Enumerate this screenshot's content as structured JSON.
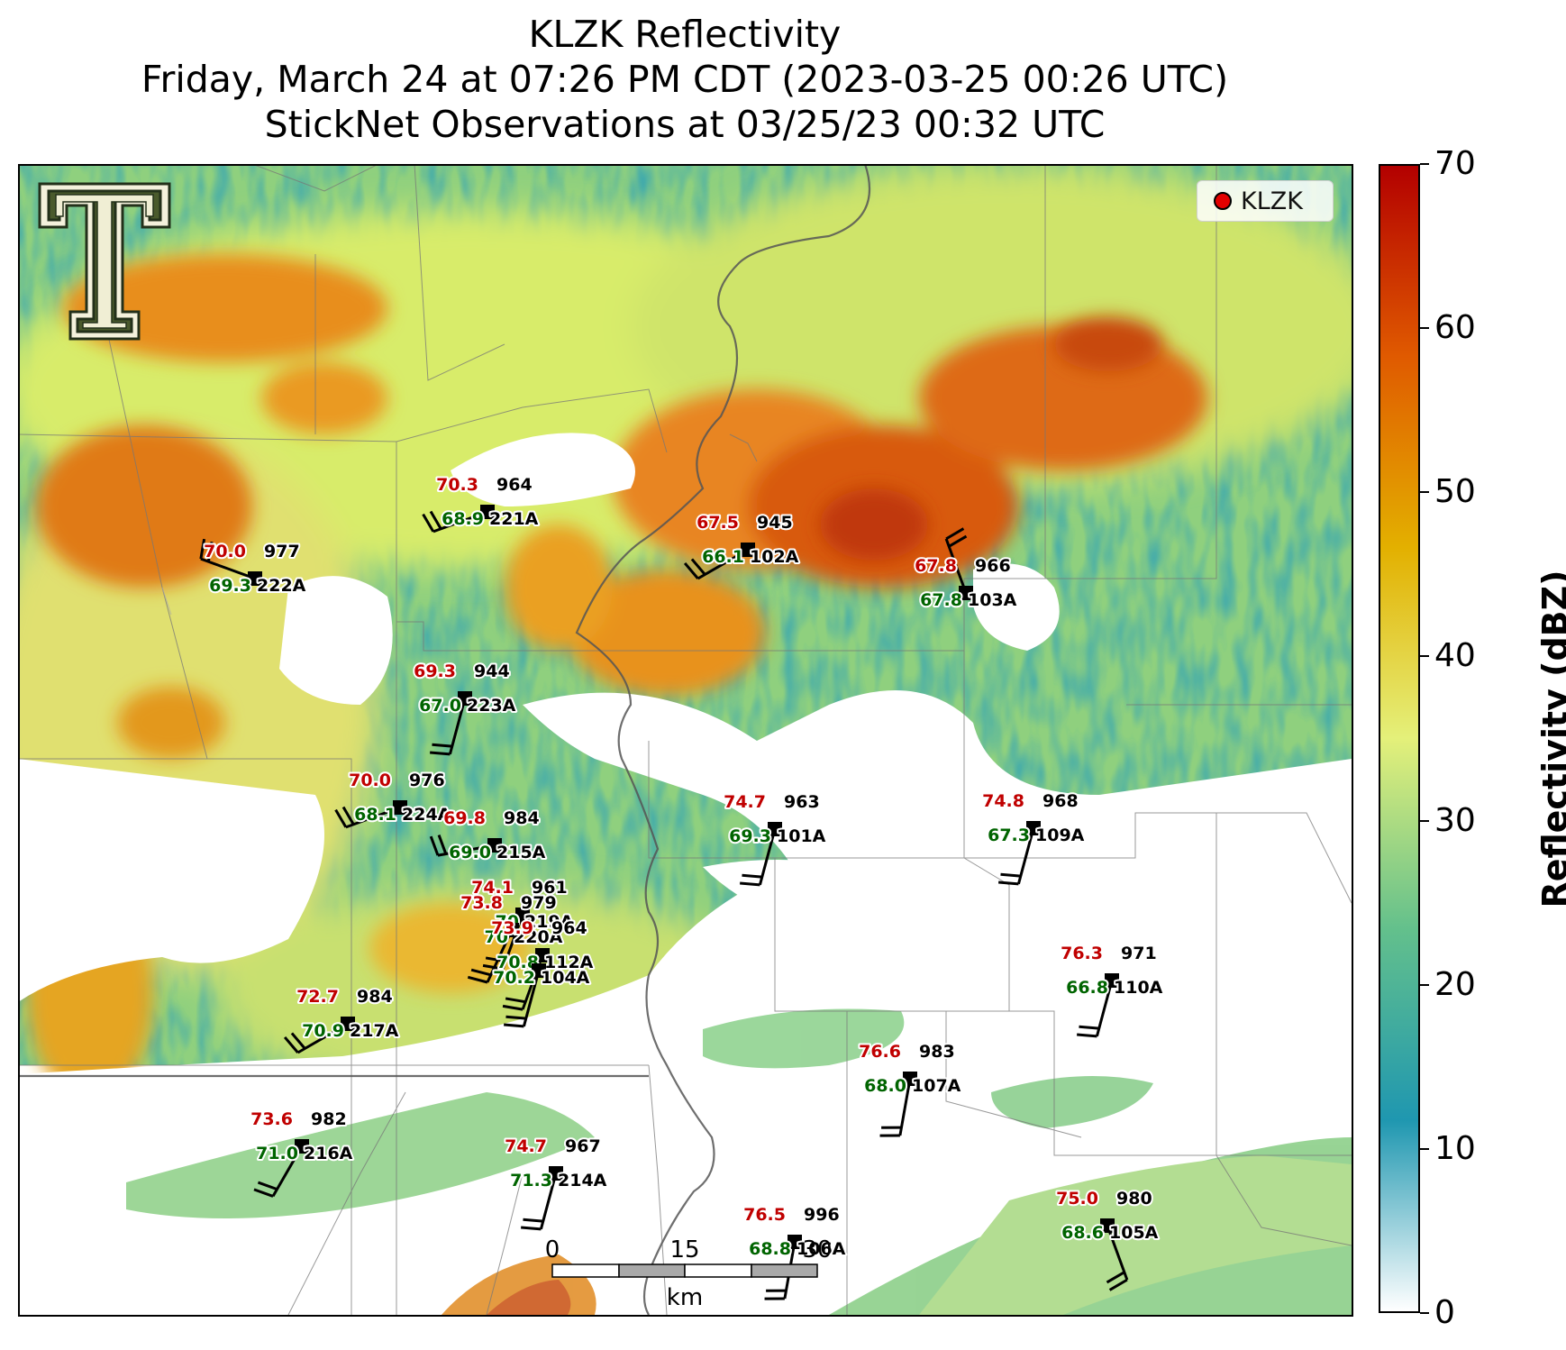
{
  "title": {
    "line1": "KLZK Reflectivity",
    "line2": "Friday, March 24 at 07:26 PM CDT (2023-03-25 00:26 UTC)",
    "line3": "StickNet Observations at 03/25/23 00:32 UTC"
  },
  "legend": {
    "label": "KLZK",
    "marker_color": "#e30000"
  },
  "colorbar": {
    "title": "Reflectivity (dBZ)",
    "ticks": [
      "0",
      "10",
      "20",
      "30",
      "40",
      "50",
      "60",
      "70"
    ],
    "min": 0,
    "max": 70,
    "colors": [
      "#ffffff",
      "#1f97b0",
      "#63c08c",
      "#e4f07a",
      "#e3b000",
      "#e05a00",
      "#b30000"
    ]
  },
  "scalebar": {
    "labels": [
      "0",
      "15",
      "30"
    ],
    "unit": "km"
  },
  "stations": [
    {
      "id": "221A",
      "temp": "70.3",
      "dew": "68.9",
      "pres": "964"
    },
    {
      "id": "222A",
      "temp": "70.0",
      "dew": "69.3",
      "pres": "977"
    },
    {
      "id": "102A",
      "temp": "67.5",
      "dew": "66.1",
      "pres": "945"
    },
    {
      "id": "103A",
      "temp": "67.8",
      "dew": "67.8",
      "pres": "966"
    },
    {
      "id": "223A",
      "temp": "69.3",
      "dew": "67.0",
      "pres": "944"
    },
    {
      "id": "224A",
      "temp": "70.0",
      "dew": "68.1",
      "pres": "976"
    },
    {
      "id": "215A",
      "temp": "69.8",
      "dew": "69.0",
      "pres": "984"
    },
    {
      "id": "101A",
      "temp": "74.7",
      "dew": "69.3",
      "pres": "963"
    },
    {
      "id": "109A",
      "temp": "74.8",
      "dew": "67.3",
      "pres": "968"
    },
    {
      "id": "219A",
      "temp": "74.1",
      "dew": "70",
      "pres": "961"
    },
    {
      "id": "220A",
      "temp": "73.8",
      "dew": "70",
      "pres": "979"
    },
    {
      "id": "112A",
      "temp": "73.9",
      "dew": "70.8",
      "pres": "964"
    },
    {
      "id": "104A",
      "temp": "",
      "dew": "70.2",
      "pres": ""
    },
    {
      "id": "110A",
      "temp": "76.3",
      "dew": "66.8",
      "pres": "971"
    },
    {
      "id": "217A",
      "temp": "72.7",
      "dew": "70.9",
      "pres": "984"
    },
    {
      "id": "107A",
      "temp": "76.6",
      "dew": "68.0",
      "pres": "983"
    },
    {
      "id": "216A",
      "temp": "73.6",
      "dew": "71.0",
      "pres": "982"
    },
    {
      "id": "214A",
      "temp": "74.7",
      "dew": "71.3",
      "pres": "967"
    },
    {
      "id": "106A",
      "temp": "76.5",
      "dew": "68.8",
      "pres": "996"
    },
    {
      "id": "105A",
      "temp": "75.0",
      "dew": "68.6",
      "pres": "980"
    }
  ]
}
